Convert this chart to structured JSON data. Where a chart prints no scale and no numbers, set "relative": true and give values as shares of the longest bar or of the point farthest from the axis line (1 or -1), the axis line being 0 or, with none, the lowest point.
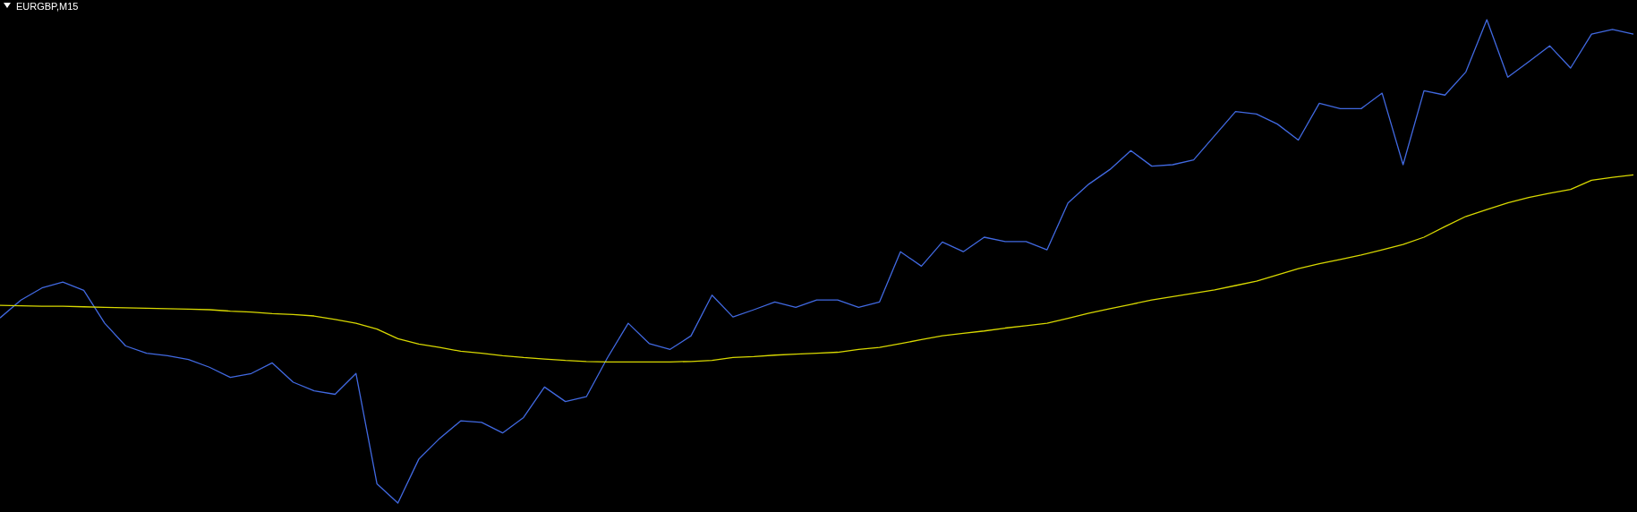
{
  "chart_data": {
    "type": "line",
    "title": "EURGBP,M15",
    "relative": true,
    "line_style": "solid",
    "marker": "none",
    "categories": [
      null,
      null,
      null,
      null,
      null,
      null,
      null,
      null,
      null,
      null,
      null,
      null,
      null,
      null,
      null,
      null,
      null,
      null,
      null,
      null,
      null,
      null,
      null,
      null,
      null,
      null,
      null,
      null,
      null,
      null,
      null,
      null,
      null,
      null,
      null,
      null,
      null,
      null,
      null,
      null,
      null,
      null,
      null,
      null,
      null,
      null,
      null,
      null,
      null,
      null,
      null,
      null,
      null,
      null,
      null,
      null,
      null,
      null,
      null,
      null,
      null,
      null,
      null,
      null,
      null,
      null,
      null,
      null,
      null,
      null,
      null,
      null,
      null,
      null,
      null,
      null,
      null,
      null,
      null
    ],
    "series": [
      {
        "color": "#4169e1",
        "values": [
          0.383,
          0.42,
          0.445,
          0.457,
          0.44,
          0.372,
          0.325,
          0.31,
          0.305,
          0.297,
          0.281,
          0.26,
          0.268,
          0.29,
          0.25,
          0.232,
          0.225,
          0.268,
          0.04,
          0.0,
          0.091,
          0.134,
          0.17,
          0.167,
          0.145,
          0.177,
          0.24,
          0.21,
          0.22,
          0.3,
          0.372,
          0.33,
          0.318,
          0.346,
          0.43,
          0.385,
          0.4,
          0.416,
          0.405,
          0.42,
          0.42,
          0.405,
          0.416,
          0.52,
          0.49,
          0.54,
          0.52,
          0.55,
          0.541,
          0.541,
          0.524,
          0.621,
          0.66,
          0.69,
          0.729,
          0.697,
          0.7,
          0.71,
          0.76,
          0.81,
          0.805,
          0.784,
          0.751,
          0.827,
          0.816,
          0.816,
          0.848,
          0.7,
          0.853,
          0.844,
          0.892,
          1,
          0.881,
          0.913,
          0.946,
          0.9,
          0.97,
          0.98,
          0.97
        ]
      },
      {
        "color": "#d8d800",
        "values": [
          0.409,
          0.408,
          0.407,
          0.407,
          0.406,
          0.405,
          0.404,
          0.403,
          0.402,
          0.401,
          0.4,
          0.397,
          0.395,
          0.392,
          0.39,
          0.387,
          0.38,
          0.372,
          0.36,
          0.34,
          0.329,
          0.322,
          0.314,
          0.31,
          0.305,
          0.301,
          0.298,
          0.295,
          0.293,
          0.292,
          0.292,
          0.292,
          0.292,
          0.293,
          0.295,
          0.301,
          0.303,
          0.306,
          0.308,
          0.31,
          0.312,
          0.318,
          0.322,
          0.33,
          0.338,
          0.346,
          0.351,
          0.356,
          0.362,
          0.367,
          0.372,
          0.382,
          0.393,
          0.402,
          0.411,
          0.42,
          0.427,
          0.434,
          0.441,
          0.45,
          0.459,
          0.472,
          0.485,
          0.495,
          0.504,
          0.513,
          0.524,
          0.535,
          0.55,
          0.572,
          0.593,
          0.607,
          0.621,
          0.632,
          0.641,
          0.649,
          0.668,
          0.674,
          0.679
        ]
      }
    ]
  }
}
